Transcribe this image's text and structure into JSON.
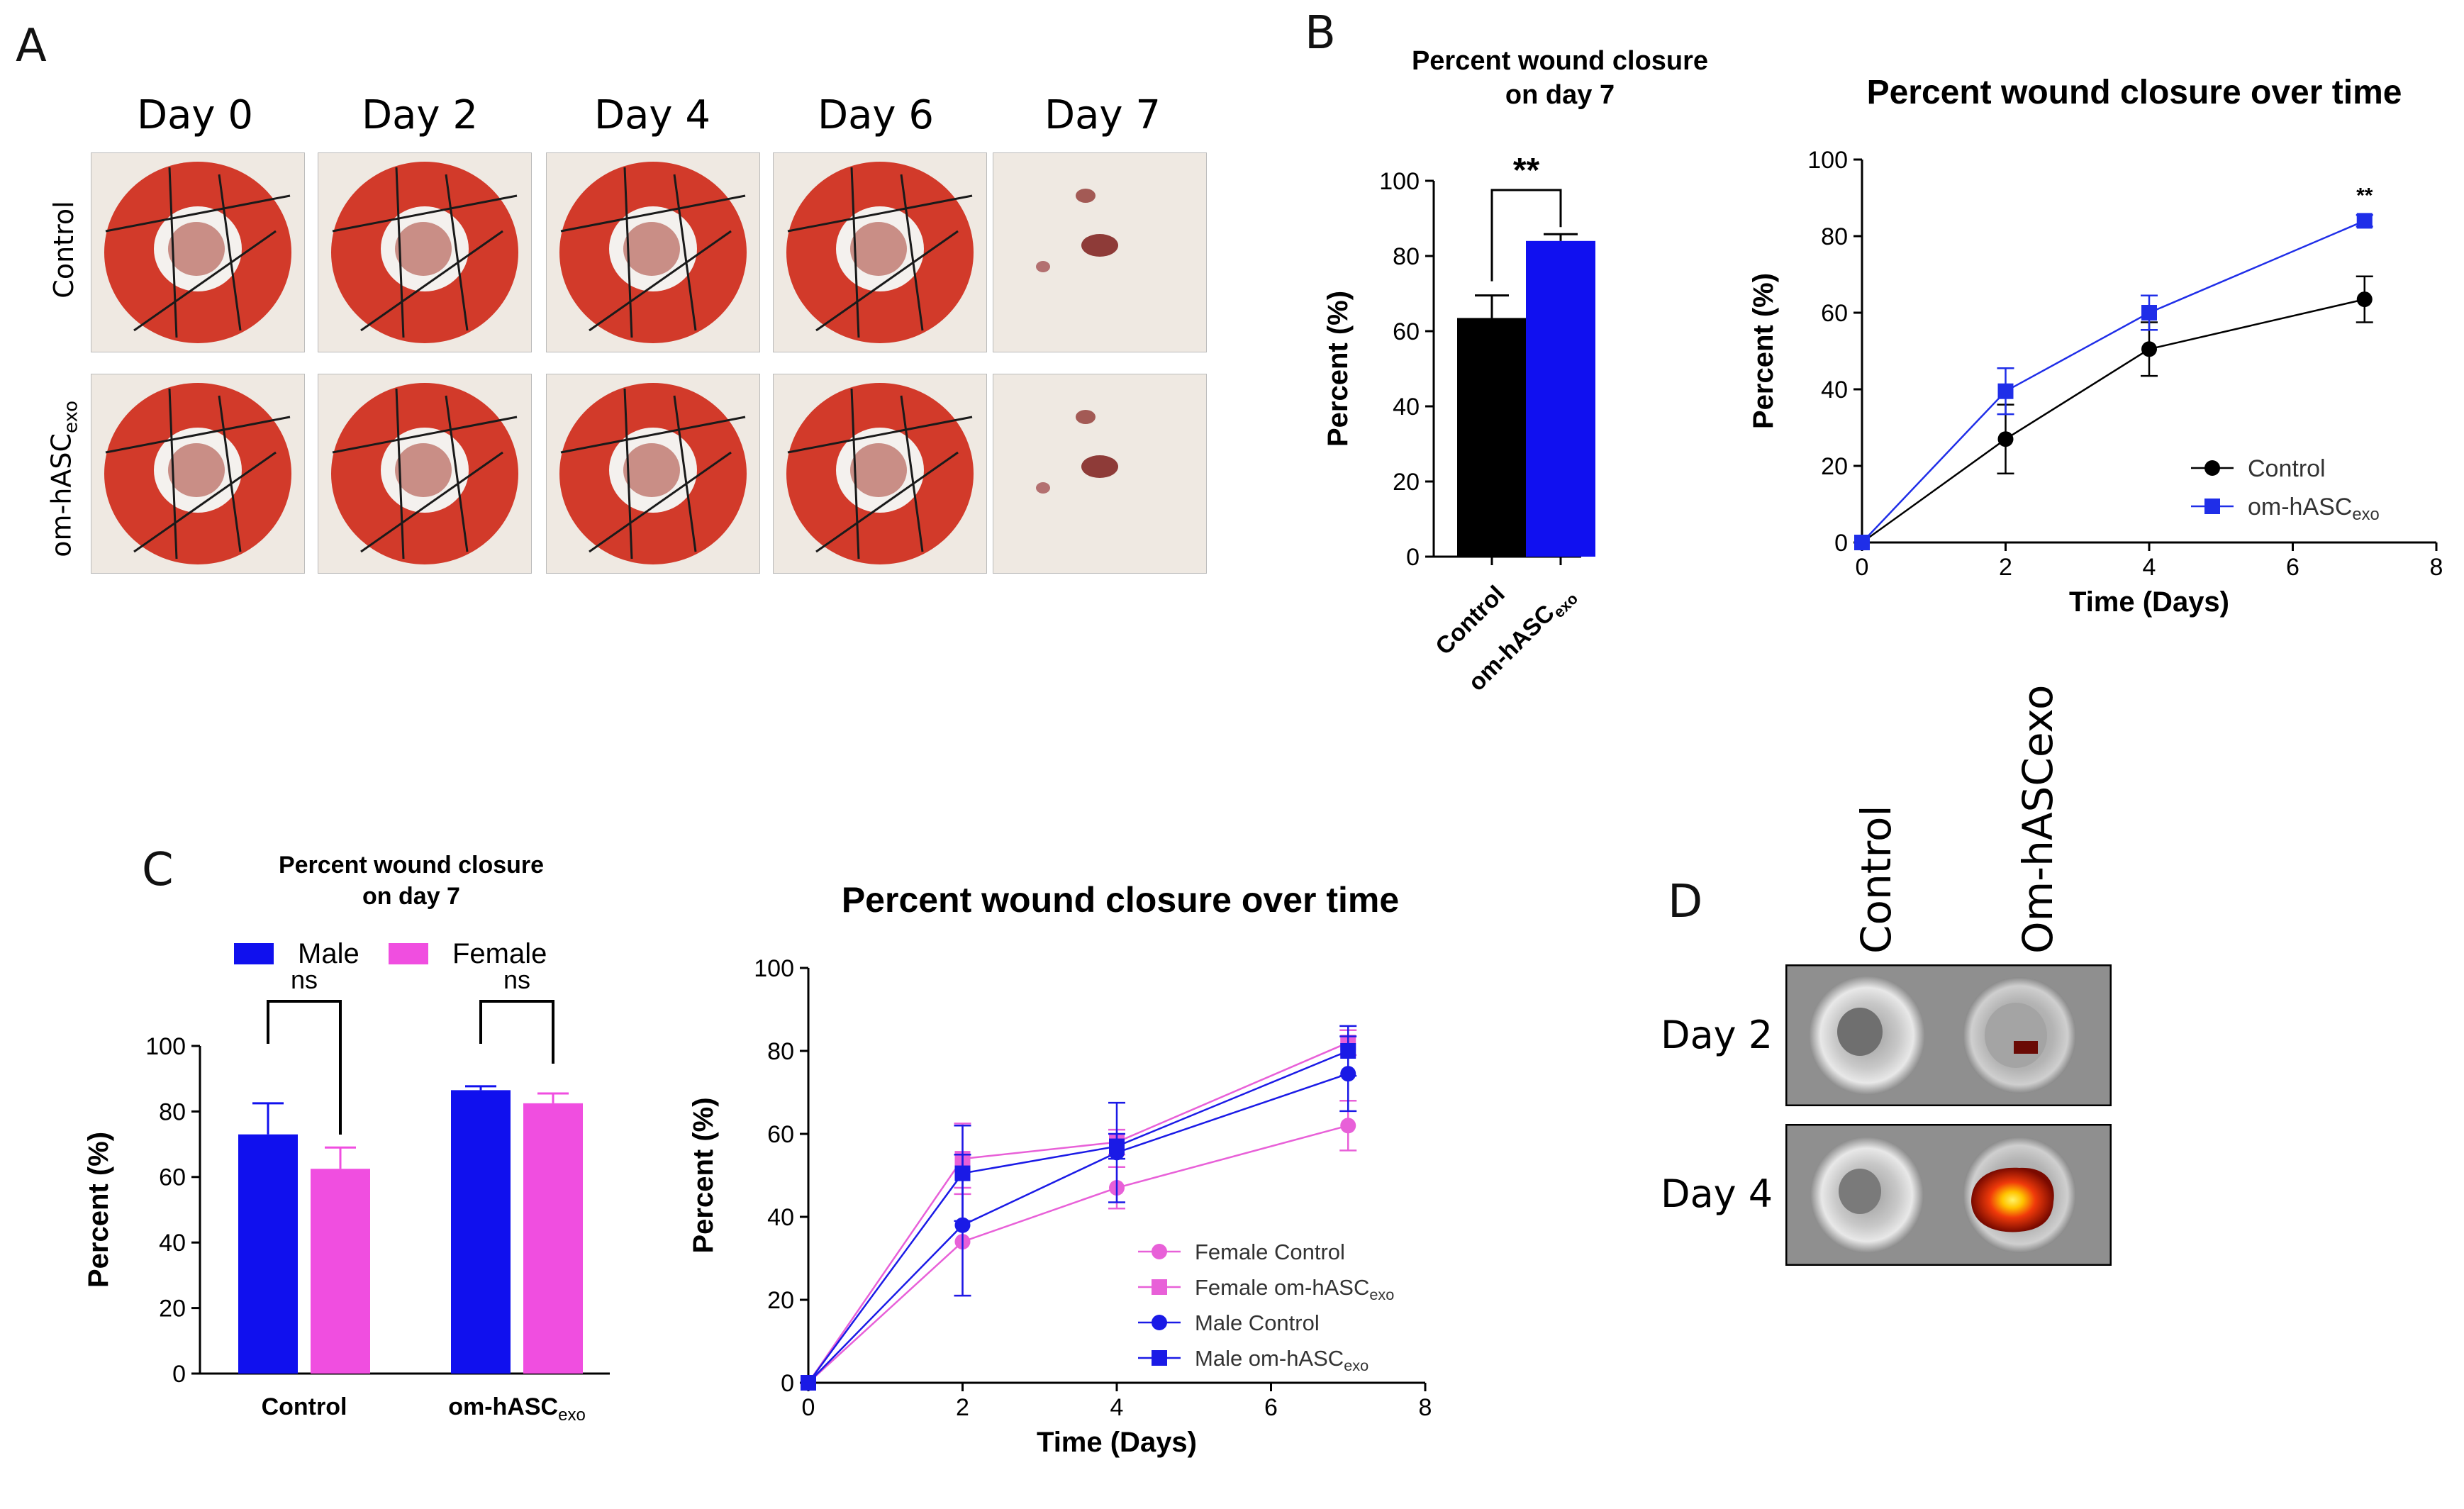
{
  "panels": {
    "a": "A",
    "b": "B",
    "c": "C",
    "d": "D"
  },
  "panel_a": {
    "days": [
      "Day 0",
      "Day 2",
      "Day 4",
      "Day 6",
      "Day 7"
    ],
    "rows": [
      "Control",
      "om-hASC",
      "exo"
    ],
    "colors": {
      "dressing": "#d23a2a",
      "skin": "#efe9e2",
      "wound": "#c98e86"
    }
  },
  "panel_d": {
    "columns": [
      "Control",
      "Om-hASCexo"
    ],
    "rows": [
      "Day 2",
      "Day 4"
    ]
  },
  "chart_data": [
    {
      "id": "b1",
      "type": "bar",
      "title": [
        "Percent wound closure",
        "on day 7"
      ],
      "ylabel": "Percent (%)",
      "ylim": [
        0,
        100
      ],
      "yticks": [
        0,
        20,
        40,
        60,
        80,
        100
      ],
      "categories": [
        {
          "main": "Control",
          "sub": ""
        },
        {
          "main": "om-hASC",
          "sub": "exo"
        }
      ],
      "values": [
        63.5,
        84
      ],
      "errors": [
        6,
        1.8
      ],
      "colors": [
        "#000000",
        "#1010f0"
      ],
      "significance": "**"
    },
    {
      "id": "b2",
      "type": "line",
      "title": "Percent wound closure over time",
      "xlabel": "Time (Days)",
      "ylabel": "Percent (%)",
      "xlim": [
        0,
        8
      ],
      "ylim": [
        0,
        100
      ],
      "xticks": [
        0,
        2,
        4,
        6,
        8
      ],
      "yticks": [
        0,
        20,
        40,
        60,
        80,
        100
      ],
      "legend_position": "bottom-right",
      "annotation": {
        "x": 7,
        "text": "**"
      },
      "series": [
        {
          "name": "Control",
          "sub": "",
          "color": "#000000",
          "marker": "circle",
          "x": [
            0,
            2,
            4,
            7
          ],
          "y": [
            0,
            27,
            50.5,
            63.5
          ],
          "err": [
            0,
            9,
            7,
            6
          ]
        },
        {
          "name": "om-hASC",
          "sub": "exo",
          "color": "#1f2ee8",
          "marker": "square",
          "x": [
            0,
            2,
            4,
            7
          ],
          "y": [
            0,
            39.5,
            60,
            84
          ],
          "err": [
            0,
            6,
            4.5,
            1.5
          ]
        }
      ]
    },
    {
      "id": "c1",
      "type": "bar",
      "title": [
        "Percent wound closure",
        "on day 7"
      ],
      "ylabel": "Percent (%)",
      "ylim": [
        0,
        100
      ],
      "yticks": [
        0,
        20,
        40,
        60,
        80,
        100
      ],
      "categories": [
        {
          "main": "Control",
          "sub": ""
        },
        {
          "main": "om-hASC",
          "sub": "exo"
        }
      ],
      "series": [
        {
          "name": "Male",
          "color": "#1010ee",
          "values": [
            73,
            86.5
          ],
          "errors": [
            9.5,
            1.2
          ]
        },
        {
          "name": "Female",
          "color": "#f04ee0",
          "values": [
            62.5,
            82.5
          ],
          "errors": [
            6.5,
            3
          ]
        }
      ],
      "significance": [
        "ns",
        "ns"
      ]
    },
    {
      "id": "c2",
      "type": "line",
      "title": "Percent wound closure over time",
      "xlabel": "Time (Days)",
      "ylabel": "Percent (%)",
      "xlim": [
        0,
        8
      ],
      "ylim": [
        0,
        100
      ],
      "xticks": [
        0,
        2,
        4,
        6,
        8
      ],
      "yticks": [
        0,
        20,
        40,
        60,
        80,
        100
      ],
      "legend_position": "bottom-right",
      "series": [
        {
          "name": "Female Control",
          "sub": "",
          "color": "#e860d8",
          "marker": "circle",
          "x": [
            0,
            2,
            4,
            7
          ],
          "y": [
            0,
            34,
            47,
            62
          ],
          "err": [
            0,
            13,
            5,
            6
          ]
        },
        {
          "name": "Female om-hASC",
          "sub": "exo",
          "color": "#e860d8",
          "marker": "square",
          "x": [
            0,
            2,
            4,
            7
          ],
          "y": [
            0,
            54,
            58,
            82
          ],
          "err": [
            0,
            8.5,
            3,
            3
          ]
        },
        {
          "name": "Male Control",
          "sub": "",
          "color": "#1a1ae6",
          "marker": "circle",
          "x": [
            0,
            2,
            4,
            7
          ],
          "y": [
            0,
            38,
            55.5,
            74.5
          ],
          "err": [
            0,
            17,
            12,
            9
          ]
        },
        {
          "name": "Male om-hASC",
          "sub": "exo",
          "color": "#1a1ae6",
          "marker": "square",
          "x": [
            0,
            2,
            4,
            7
          ],
          "y": [
            0,
            50.5,
            57,
            80
          ],
          "err": [
            0,
            11.5,
            3,
            6
          ]
        }
      ]
    }
  ]
}
